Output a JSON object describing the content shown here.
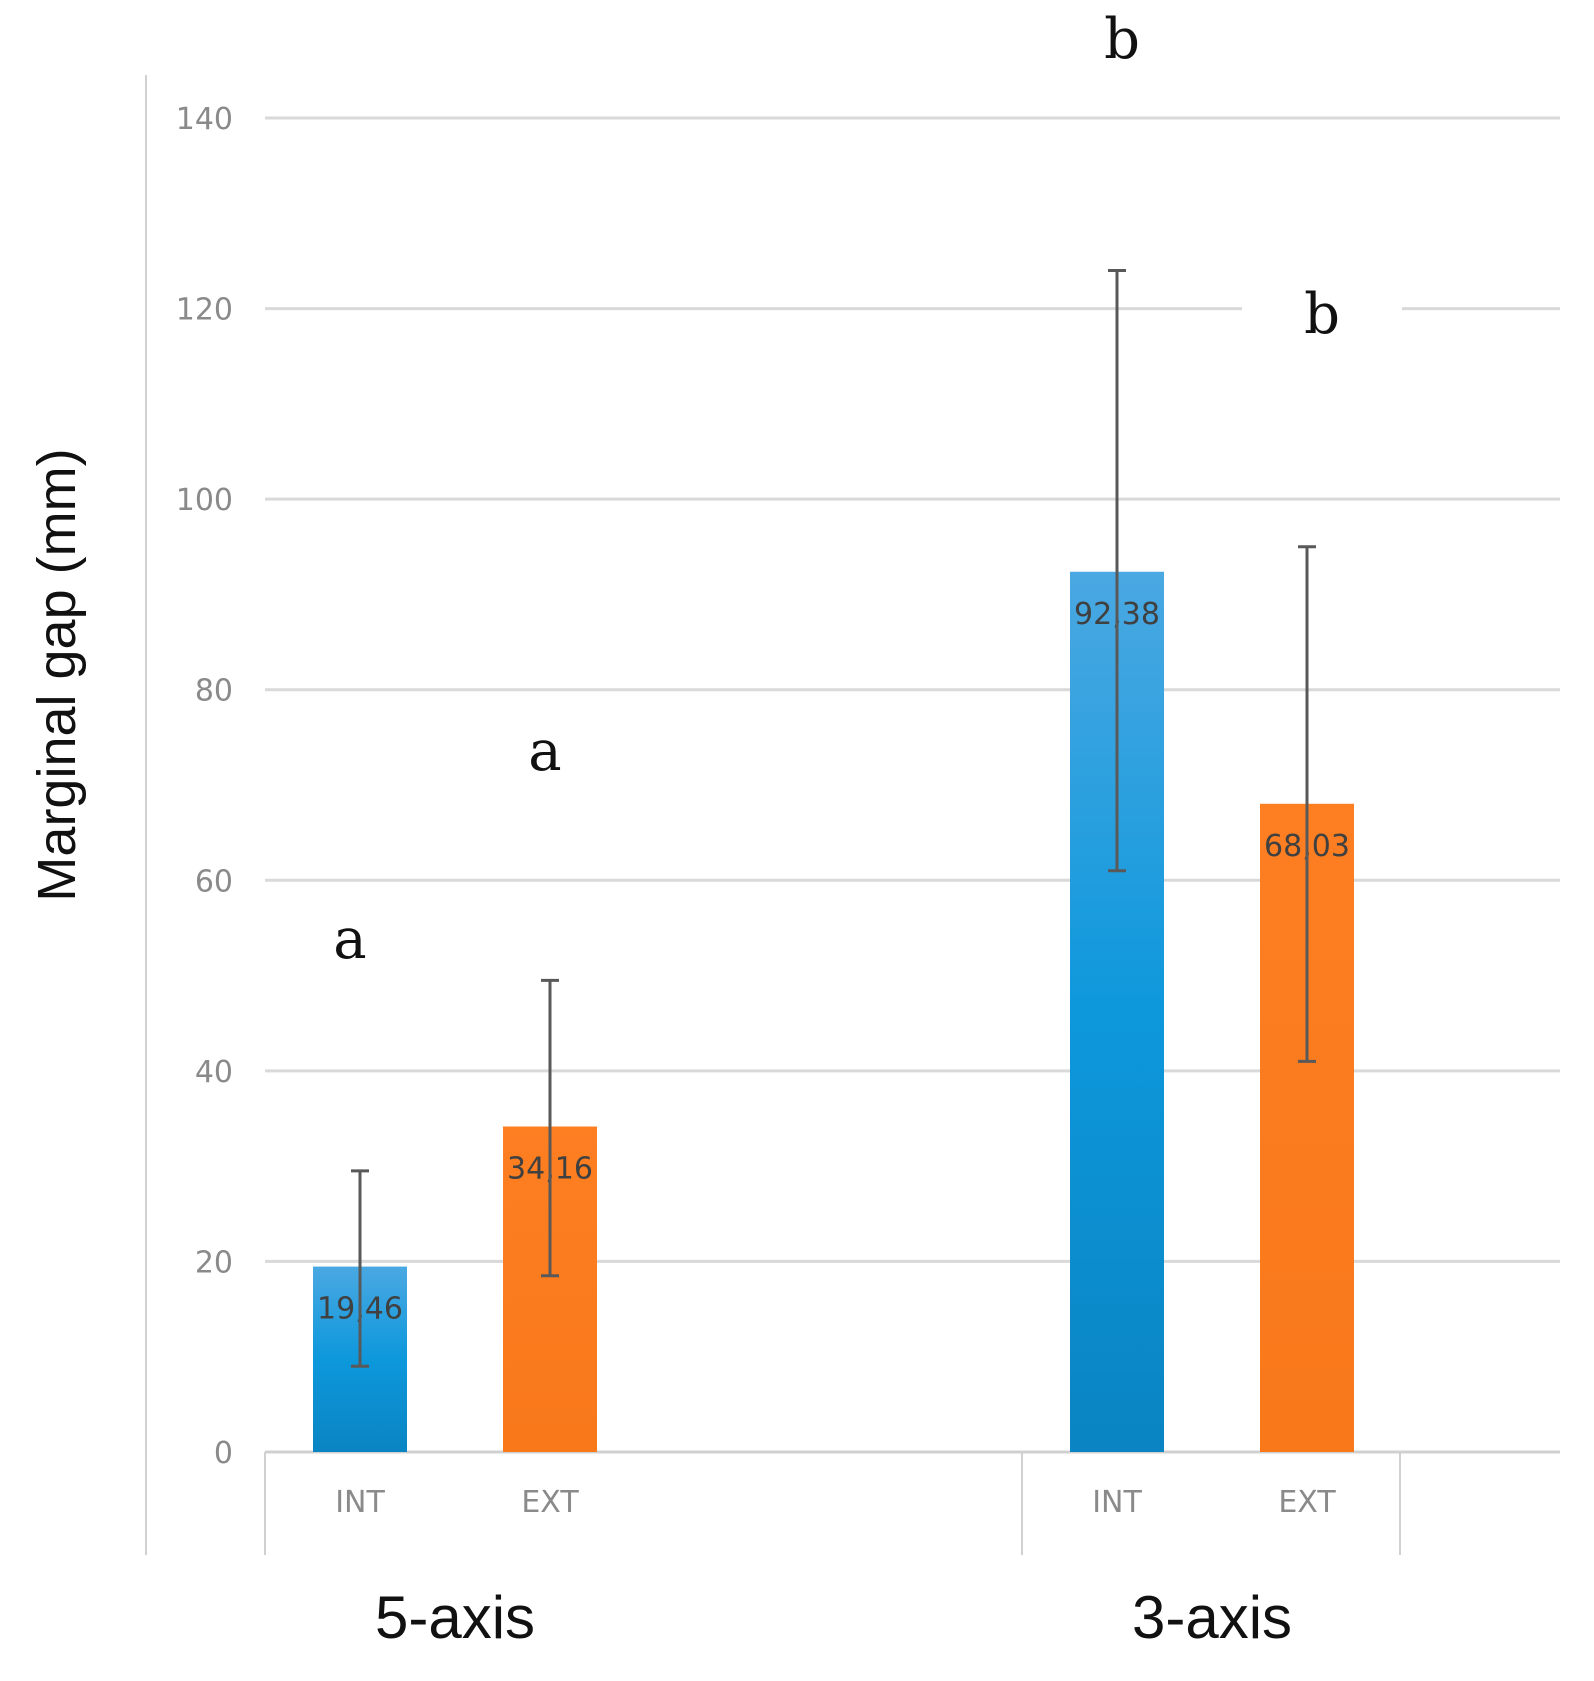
{
  "chart_data": {
    "type": "bar",
    "title": "",
    "ylabel": "Marginal gap (mm)",
    "xlabel": "",
    "ylim": [
      0,
      140
    ],
    "yticks": [
      0,
      20,
      40,
      60,
      80,
      100,
      120,
      140
    ],
    "grid": true,
    "legend": "none",
    "colors": {
      "INT": "#1e90d8",
      "EXT": "#fb7a1e"
    },
    "groups": [
      {
        "name": "5-axis",
        "bars": [
          {
            "category": "INT",
            "value": 19.46,
            "label": "19,46",
            "error_low": 9,
            "error_high": 29.5,
            "letter": "a"
          },
          {
            "category": "EXT",
            "value": 34.16,
            "label": "34,16",
            "error_low": 18.5,
            "error_high": 49.5,
            "letter": "a"
          }
        ]
      },
      {
        "name": "3-axis",
        "bars": [
          {
            "category": "INT",
            "value": 92.38,
            "label": "92,38",
            "error_low": 61,
            "error_high": 124,
            "letter": "b"
          },
          {
            "category": "EXT",
            "value": 68.03,
            "label": "68,03",
            "error_low": 41,
            "error_high": 95,
            "letter": "b"
          }
        ]
      }
    ]
  }
}
